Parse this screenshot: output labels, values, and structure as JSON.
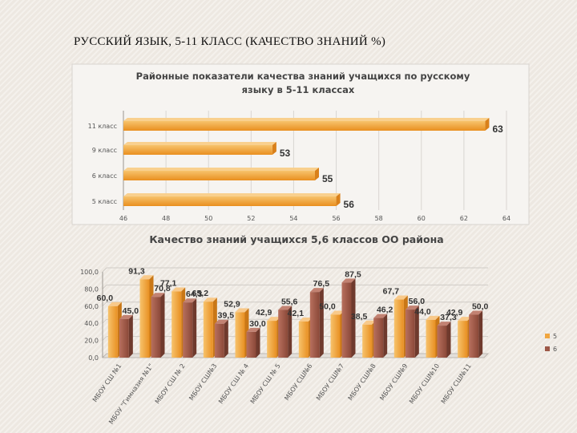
{
  "slide": {
    "title": "РУССКИЙ ЯЗЫК, 5-11 КЛАСС (КАЧЕСТВО ЗНАНИЙ %)"
  },
  "colors": {
    "bar_top": "#f2a43a",
    "series_5": "#f0a640",
    "series_6": "#9d5848"
  },
  "chart_data": [
    {
      "type": "bar",
      "orientation": "horizontal",
      "title_lines": [
        "Районные показатели качества знаний учащихся по русскому",
        "языку в 5-11 классах"
      ],
      "categories": [
        "11 класс",
        "9 класс",
        "6 класс",
        "5 класс"
      ],
      "values": [
        63,
        53,
        55,
        56
      ],
      "xlim": [
        46,
        64
      ],
      "xticks": [
        "46",
        "48",
        "50",
        "52",
        "54",
        "56",
        "58",
        "60",
        "62",
        "64"
      ],
      "grid": true
    },
    {
      "type": "bar",
      "title": "Качество знаний учащихся 5,6 классов ОО района",
      "categories": [
        "МБОУ СШ №1",
        "МБОУ \"Гимназия №1\"",
        "МБОУ СШ № 2",
        "МБОУ СШ№3",
        "МБОУ СШ № 4",
        "МБОУ СШ № 5",
        "МБОУ СШ№6",
        "МБОУ СШ№7",
        "МБОУ СШ№8",
        "МБОУ СШ№9",
        "МБОУ СШ№10",
        "МБОУ СШ№11"
      ],
      "series": [
        {
          "name": "5",
          "values": [
            60.0,
            91.3,
            77.1,
            65.2,
            52.9,
            42.9,
            42.1,
            50.0,
            38.5,
            67.7,
            44.0,
            42.9
          ],
          "labels": [
            "60,0",
            "91,3",
            "77,1",
            "65,2",
            "52,9",
            "42,9",
            "42,1",
            "50,0",
            "38,5",
            "67,7",
            "44,0",
            "42,9"
          ]
        },
        {
          "name": "6",
          "values": [
            45.0,
            70.8,
            64.3,
            39.5,
            30.0,
            55.6,
            76.5,
            87.5,
            46.2,
            56.0,
            37.3,
            50.0
          ],
          "labels": [
            "45,0",
            "70,8",
            "64,3",
            "39,5",
            "30,0",
            "55,6",
            "76,5",
            "87,5",
            "46,2",
            "56,0",
            "37,3",
            "50,0"
          ]
        }
      ],
      "ylim": [
        0,
        100
      ],
      "yticks": [
        "0,0",
        "20,0",
        "40,0",
        "60,0",
        "80,0",
        "100,0"
      ],
      "legend": "right",
      "grid": true
    }
  ]
}
